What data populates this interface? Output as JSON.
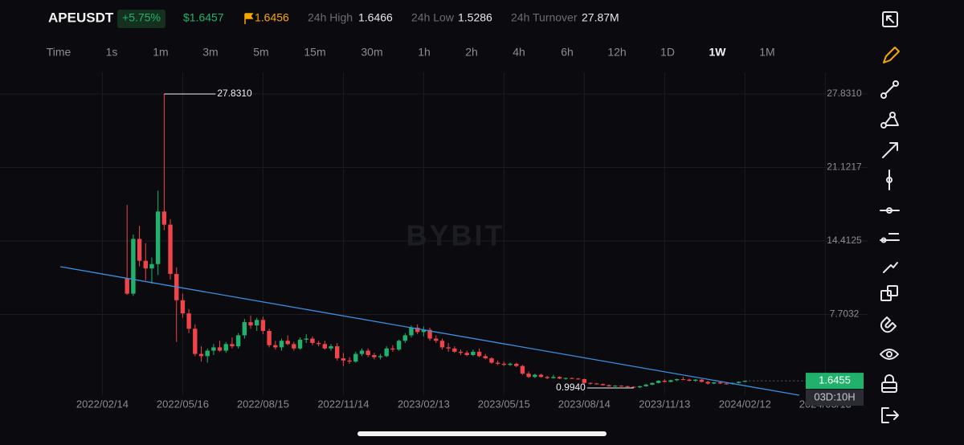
{
  "header": {
    "symbol": "APEUSDT",
    "change": "+5.75%",
    "last_price": "$1.6457",
    "mark_price": "1.6456",
    "stats": [
      {
        "label": "24h High",
        "value": "1.6466"
      },
      {
        "label": "24h Low",
        "value": "1.5286"
      },
      {
        "label": "24h Turnover",
        "value": "27.87M"
      }
    ]
  },
  "timeframes": [
    "Time",
    "1s",
    "1m",
    "3m",
    "5m",
    "15m",
    "30m",
    "1h",
    "2h",
    "4h",
    "6h",
    "12h",
    "1D",
    "1W",
    "1M"
  ],
  "selected_timeframe": "1W",
  "chart_data": {
    "type": "candlestick",
    "watermark": "BYBIT",
    "up_color": "#20b26c",
    "down_color": "#ef454a",
    "grid": true,
    "x": [
      "2022/03/14",
      "2022/03/21",
      "2022/03/28",
      "2022/04/04",
      "2022/04/11",
      "2022/04/18",
      "2022/04/25",
      "2022/05/02",
      "2022/05/09",
      "2022/05/16",
      "2022/05/23",
      "2022/05/30",
      "2022/06/06",
      "2022/06/13",
      "2022/06/20",
      "2022/06/27",
      "2022/07/04",
      "2022/07/11",
      "2022/07/18",
      "2022/07/25",
      "2022/08/01",
      "2022/08/08",
      "2022/08/15",
      "2022/08/22",
      "2022/08/29",
      "2022/09/05",
      "2022/09/12",
      "2022/09/19",
      "2022/09/26",
      "2022/10/03",
      "2022/10/10",
      "2022/10/17",
      "2022/10/24",
      "2022/10/31",
      "2022/11/07",
      "2022/11/14",
      "2022/11/21",
      "2022/11/28",
      "2022/12/05",
      "2022/12/12",
      "2022/12/19",
      "2022/12/26",
      "2023/01/02",
      "2023/01/09",
      "2023/01/16",
      "2023/01/23",
      "2023/01/30",
      "2023/02/06",
      "2023/02/13",
      "2023/02/20",
      "2023/02/27",
      "2023/03/06",
      "2023/03/13",
      "2023/03/20",
      "2023/03/27",
      "2023/04/03",
      "2023/04/10",
      "2023/04/17",
      "2023/04/24",
      "2023/05/01",
      "2023/05/08",
      "2023/05/15",
      "2023/05/22",
      "2023/05/29",
      "2023/06/05",
      "2023/06/12",
      "2023/06/19",
      "2023/06/26",
      "2023/07/03",
      "2023/07/10",
      "2023/07/17",
      "2023/07/24",
      "2023/07/31",
      "2023/08/07",
      "2023/08/14",
      "2023/08/21",
      "2023/08/28",
      "2023/09/04",
      "2023/09/11",
      "2023/09/18",
      "2023/09/25",
      "2023/10/02",
      "2023/10/09",
      "2023/10/16",
      "2023/10/23",
      "2023/10/30",
      "2023/11/06",
      "2023/11/13",
      "2023/11/20",
      "2023/11/27",
      "2023/12/04",
      "2023/12/11",
      "2023/12/18",
      "2023/12/25",
      "2024/01/01",
      "2024/01/08",
      "2024/01/15",
      "2024/01/22",
      "2024/01/29",
      "2024/02/05",
      "2024/02/12"
    ],
    "ohlc": [
      [
        11.0,
        17.7,
        9.5,
        9.6
      ],
      [
        9.6,
        15.0,
        9.4,
        14.6
      ],
      [
        14.6,
        15.8,
        12.1,
        12.6
      ],
      [
        12.6,
        14.2,
        10.8,
        11.9
      ],
      [
        11.9,
        12.9,
        10.5,
        12.3
      ],
      [
        12.3,
        19.0,
        11.3,
        17.1
      ],
      [
        17.1,
        27.831,
        15.4,
        15.9
      ],
      [
        15.9,
        16.4,
        10.9,
        11.4
      ],
      [
        11.4,
        12.0,
        5.2,
        9.0
      ],
      [
        9.0,
        9.6,
        7.4,
        7.8
      ],
      [
        7.8,
        8.2,
        6.0,
        6.4
      ],
      [
        6.4,
        6.8,
        3.9,
        4.1
      ],
      [
        4.1,
        4.8,
        3.4,
        3.9
      ],
      [
        3.9,
        4.6,
        3.3,
        4.4
      ],
      [
        4.4,
        5.0,
        4.0,
        4.7
      ],
      [
        4.7,
        5.3,
        4.3,
        4.4
      ],
      [
        4.4,
        5.2,
        4.2,
        5.0
      ],
      [
        5.0,
        5.6,
        4.6,
        4.8
      ],
      [
        4.8,
        6.0,
        4.6,
        5.8
      ],
      [
        5.8,
        7.3,
        5.5,
        7.0
      ],
      [
        7.0,
        7.6,
        6.4,
        6.7
      ],
      [
        6.7,
        7.4,
        6.2,
        7.2
      ],
      [
        7.2,
        7.5,
        5.9,
        6.2
      ],
      [
        6.2,
        6.4,
        4.7,
        4.9
      ],
      [
        4.9,
        5.3,
        4.5,
        4.7
      ],
      [
        4.7,
        5.5,
        4.4,
        5.3
      ],
      [
        5.3,
        5.8,
        4.9,
        5.0
      ],
      [
        5.0,
        5.2,
        4.4,
        4.6
      ],
      [
        4.6,
        5.6,
        4.5,
        5.4
      ],
      [
        5.4,
        5.9,
        5.1,
        5.5
      ],
      [
        5.5,
        5.7,
        4.9,
        5.1
      ],
      [
        5.1,
        5.3,
        4.8,
        5.0
      ],
      [
        5.0,
        5.3,
        4.5,
        4.6
      ],
      [
        4.6,
        5.0,
        4.4,
        4.8
      ],
      [
        4.8,
        5.1,
        3.5,
        3.7
      ],
      [
        3.7,
        4.2,
        3.0,
        3.5
      ],
      [
        3.5,
        3.8,
        3.2,
        3.4
      ],
      [
        3.4,
        4.3,
        3.3,
        4.1
      ],
      [
        4.1,
        4.6,
        3.9,
        4.4
      ],
      [
        4.4,
        4.6,
        3.8,
        4.0
      ],
      [
        4.0,
        4.2,
        3.6,
        3.8
      ],
      [
        3.8,
        4.1,
        3.6,
        3.9
      ],
      [
        3.9,
        4.8,
        3.8,
        4.6
      ],
      [
        4.6,
        4.9,
        4.3,
        4.5
      ],
      [
        4.5,
        5.4,
        4.4,
        5.3
      ],
      [
        5.3,
        6.0,
        5.1,
        5.8
      ],
      [
        5.8,
        6.7,
        5.6,
        6.5
      ],
      [
        6.5,
        6.8,
        5.9,
        6.1
      ],
      [
        6.1,
        6.6,
        5.7,
        6.3
      ],
      [
        6.3,
        6.5,
        5.3,
        5.5
      ],
      [
        5.5,
        5.8,
        5.1,
        5.3
      ],
      [
        5.3,
        5.5,
        4.5,
        4.7
      ],
      [
        4.7,
        5.1,
        4.3,
        4.6
      ],
      [
        4.6,
        4.8,
        4.2,
        4.3
      ],
      [
        4.3,
        4.5,
        4.0,
        4.2
      ],
      [
        4.2,
        4.4,
        3.9,
        4.0
      ],
      [
        4.0,
        4.5,
        3.9,
        4.3
      ],
      [
        4.3,
        4.6,
        3.8,
        3.9
      ],
      [
        3.9,
        4.1,
        3.6,
        3.7
      ],
      [
        3.7,
        3.8,
        3.2,
        3.3
      ],
      [
        3.3,
        3.5,
        3.1,
        3.2
      ],
      [
        3.2,
        3.4,
        3.0,
        3.1
      ],
      [
        3.1,
        3.3,
        3.0,
        3.2
      ],
      [
        3.2,
        3.3,
        2.9,
        3.0
      ],
      [
        3.0,
        3.1,
        2.2,
        2.3
      ],
      [
        2.3,
        2.5,
        1.9,
        2.0
      ],
      [
        2.0,
        2.3,
        1.9,
        2.2
      ],
      [
        2.2,
        2.3,
        1.95,
        2.0
      ],
      [
        2.0,
        2.1,
        1.8,
        1.9
      ],
      [
        1.9,
        2.2,
        1.85,
        2.0
      ],
      [
        2.0,
        2.05,
        1.8,
        1.85
      ],
      [
        1.85,
        1.95,
        1.75,
        1.9
      ],
      [
        1.9,
        1.95,
        1.8,
        1.85
      ],
      [
        1.85,
        1.9,
        1.75,
        1.8
      ],
      [
        1.8,
        1.85,
        1.35,
        1.45
      ],
      [
        1.45,
        1.5,
        1.3,
        1.4
      ],
      [
        1.4,
        1.45,
        1.3,
        1.35
      ],
      [
        1.35,
        1.4,
        1.2,
        1.25
      ],
      [
        1.25,
        1.3,
        1.1,
        1.15
      ],
      [
        1.15,
        1.25,
        1.1,
        1.2
      ],
      [
        1.2,
        1.25,
        1.1,
        1.15
      ],
      [
        1.15,
        1.2,
        1.05,
        1.1
      ],
      [
        1.1,
        1.15,
        0.994,
        1.05
      ],
      [
        1.05,
        1.2,
        1.0,
        1.15
      ],
      [
        1.15,
        1.35,
        1.1,
        1.3
      ],
      [
        1.3,
        1.5,
        1.25,
        1.45
      ],
      [
        1.45,
        1.7,
        1.4,
        1.65
      ],
      [
        1.65,
        1.8,
        1.5,
        1.55
      ],
      [
        1.55,
        1.75,
        1.5,
        1.7
      ],
      [
        1.7,
        1.85,
        1.6,
        1.8
      ],
      [
        1.8,
        2.0,
        1.7,
        1.75
      ],
      [
        1.75,
        1.85,
        1.6,
        1.65
      ],
      [
        1.65,
        1.8,
        1.55,
        1.75
      ],
      [
        1.75,
        1.8,
        1.5,
        1.55
      ],
      [
        1.55,
        1.65,
        1.3,
        1.4
      ],
      [
        1.4,
        1.55,
        1.35,
        1.5
      ],
      [
        1.5,
        1.55,
        1.35,
        1.4
      ],
      [
        1.4,
        1.45,
        1.3,
        1.35
      ],
      [
        1.35,
        1.5,
        1.3,
        1.45
      ],
      [
        1.45,
        1.6,
        1.4,
        1.556
      ],
      [
        1.556,
        1.6466,
        1.5286,
        1.6455
      ]
    ],
    "xlim": [
      "2021/10/21",
      "2024/06/30"
    ],
    "xticks": [
      "2022/02/14",
      "2022/05/16",
      "2022/08/15",
      "2022/11/14",
      "2023/02/13",
      "2023/05/15",
      "2023/08/14",
      "2023/11/13",
      "2024/02/12",
      "2024/05/13"
    ],
    "ylim": [
      0.48,
      29.44
    ],
    "yticks": [
      7.7032,
      14.4125,
      21.1217,
      {
        "value": 27.831,
        "label": "27.8310"
      }
    ],
    "high_marker": {
      "value": 27.831,
      "label": "27.8310"
    },
    "low_marker": {
      "value": 0.994,
      "label": "0.9940"
    },
    "current_price": 1.6455,
    "countdown": "03D:10H"
  }
}
